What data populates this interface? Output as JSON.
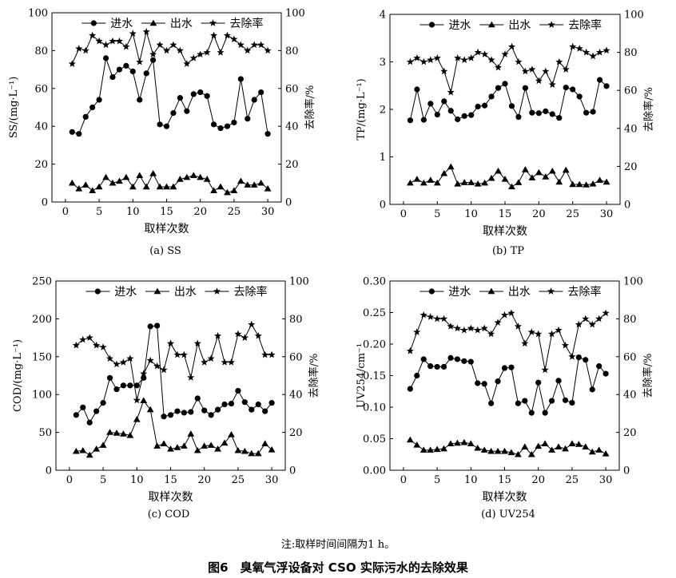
{
  "figure": {
    "note": "注:取样时间间隔为1 h。",
    "title": "图6　臭氧气浮设备对 CSO 实际污水的去除效果"
  },
  "chart_data": [
    {
      "type": "line",
      "caption": "(a) SS",
      "xlabel": "取样次数",
      "ylabel": "SS/(mg·L⁻¹)",
      "y2label": "去除率/%",
      "xlim": [
        -2,
        32
      ],
      "ylim": [
        0,
        100
      ],
      "y2lim": [
        0,
        100
      ],
      "xticks": [
        0,
        5,
        10,
        15,
        20,
        25,
        30
      ],
      "yticks": [
        0,
        20,
        40,
        60,
        80,
        100
      ],
      "y2ticks": [
        0,
        20,
        40,
        60,
        80,
        100
      ],
      "legend_position": "top",
      "x": [
        1,
        2,
        3,
        4,
        5,
        6,
        7,
        8,
        9,
        10,
        11,
        12,
        13,
        14,
        15,
        16,
        17,
        18,
        19,
        20,
        21,
        22,
        23,
        24,
        25,
        26,
        27,
        28,
        29,
        30
      ],
      "series": [
        {
          "name": "进水",
          "marker": "circle",
          "axis": "left",
          "values": [
            37,
            36,
            45,
            50,
            54,
            76,
            66,
            70,
            72,
            69,
            54,
            68,
            75,
            41,
            40,
            47,
            55,
            48,
            57,
            58,
            56,
            41,
            39,
            40,
            42,
            65,
            44,
            54,
            58,
            36
          ]
        },
        {
          "name": "出水",
          "marker": "triangle",
          "axis": "left",
          "values": [
            10,
            7,
            9,
            6,
            8,
            13,
            10,
            11,
            13,
            8,
            14,
            8,
            15,
            8,
            8,
            8,
            12,
            13,
            14,
            13,
            12,
            6,
            8,
            5,
            6,
            11,
            9,
            9,
            10,
            7
          ]
        },
        {
          "name": "去除率",
          "marker": "star",
          "axis": "right",
          "values": [
            73,
            81,
            80,
            88,
            85,
            83,
            85,
            85,
            82,
            89,
            74,
            90,
            78,
            83,
            80,
            83,
            80,
            73,
            76,
            78,
            79,
            88,
            79,
            88,
            86,
            83,
            80,
            83,
            83,
            80
          ]
        }
      ]
    },
    {
      "type": "line",
      "caption": "(b) TP",
      "xlabel": "取样次数",
      "ylabel": "TP/(mg·L⁻¹)",
      "y2label": "去除率/%",
      "xlim": [
        -2,
        32
      ],
      "ylim": [
        0,
        4
      ],
      "y2lim": [
        0,
        100
      ],
      "xticks": [
        0,
        5,
        10,
        15,
        20,
        25,
        30
      ],
      "yticks": [
        0,
        1,
        2,
        3,
        4
      ],
      "y2ticks": [
        0,
        20,
        40,
        60,
        80,
        100
      ],
      "legend_position": "top",
      "x": [
        1,
        2,
        3,
        4,
        5,
        6,
        7,
        8,
        9,
        10,
        11,
        12,
        13,
        14,
        15,
        16,
        17,
        18,
        19,
        20,
        21,
        22,
        23,
        24,
        25,
        26,
        27,
        28,
        29,
        30
      ],
      "series": [
        {
          "name": "进水",
          "marker": "circle",
          "axis": "left",
          "values": [
            1.77,
            2.42,
            1.78,
            2.12,
            1.89,
            2.17,
            1.97,
            1.79,
            1.86,
            1.88,
            2.06,
            2.08,
            2.27,
            2.45,
            2.54,
            2.07,
            1.84,
            2.45,
            1.93,
            1.92,
            1.96,
            1.9,
            1.82,
            2.46,
            2.42,
            2.27,
            1.93,
            1.95,
            2.62,
            2.49
          ]
        },
        {
          "name": "出水",
          "marker": "triangle",
          "axis": "left",
          "values": [
            0.45,
            0.53,
            0.45,
            0.51,
            0.45,
            0.65,
            0.79,
            0.43,
            0.46,
            0.46,
            0.43,
            0.45,
            0.55,
            0.7,
            0.53,
            0.37,
            0.46,
            0.73,
            0.56,
            0.67,
            0.58,
            0.7,
            0.47,
            0.72,
            0.42,
            0.42,
            0.41,
            0.43,
            0.51,
            0.47
          ]
        },
        {
          "name": "去除率",
          "marker": "star",
          "axis": "right",
          "values": [
            75,
            77,
            75,
            76,
            77,
            70,
            59,
            77,
            76,
            77,
            80,
            79,
            76,
            72,
            79,
            83,
            75,
            70,
            71,
            65,
            70,
            63,
            75,
            71,
            83,
            82,
            80,
            78,
            80,
            81
          ]
        }
      ]
    },
    {
      "type": "line",
      "caption": "(c) COD",
      "xlabel": "取样次数",
      "ylabel": "COD/(mg·L⁻¹)",
      "y2label": "去除率/%",
      "xlim": [
        -2,
        32
      ],
      "ylim": [
        0,
        250
      ],
      "y2lim": [
        0,
        100
      ],
      "xticks": [
        0,
        5,
        10,
        15,
        20,
        25,
        30
      ],
      "yticks": [
        0,
        50,
        100,
        150,
        200,
        250
      ],
      "y2ticks": [
        0,
        20,
        40,
        60,
        80,
        100
      ],
      "legend_position": "top",
      "x": [
        1,
        2,
        3,
        4,
        5,
        6,
        7,
        8,
        9,
        10,
        11,
        12,
        13,
        14,
        15,
        16,
        17,
        18,
        19,
        20,
        21,
        22,
        23,
        24,
        25,
        26,
        27,
        28,
        29,
        30
      ],
      "series": [
        {
          "name": "进水",
          "marker": "circle",
          "axis": "left",
          "values": [
            73,
            83,
            63,
            78,
            89,
            122,
            107,
            112,
            112,
            112,
            122,
            190,
            191,
            71,
            73,
            78,
            76,
            77,
            95,
            79,
            73,
            80,
            87,
            88,
            105,
            90,
            80,
            87,
            78,
            89
          ]
        },
        {
          "name": "出水",
          "marker": "triangle",
          "axis": "left",
          "values": [
            25,
            26,
            20,
            28,
            33,
            50,
            49,
            48,
            46,
            67,
            92,
            80,
            32,
            35,
            28,
            30,
            32,
            48,
            26,
            32,
            33,
            28,
            36,
            47,
            26,
            25,
            22,
            22,
            35,
            27
          ]
        },
        {
          "name": "去除率",
          "marker": "star",
          "axis": "right",
          "values": [
            66,
            69,
            70,
            66,
            65,
            59,
            56,
            57,
            59,
            37,
            51,
            58,
            55,
            53,
            67,
            61,
            61,
            49,
            67,
            57,
            59,
            71,
            57,
            57,
            72,
            70,
            77,
            71,
            61,
            61
          ]
        }
      ]
    },
    {
      "type": "line",
      "caption": "(d) UV254",
      "xlabel": "取样次数",
      "ylabel": "UV254/cm⁻¹",
      "y2label": "去除率/%",
      "xlim": [
        -2,
        32
      ],
      "ylim": [
        0,
        0.3
      ],
      "y2lim": [
        0,
        100
      ],
      "xticks": [
        0,
        5,
        10,
        15,
        20,
        25,
        30
      ],
      "yticks": [
        0.0,
        0.05,
        0.1,
        0.15,
        0.2,
        0.25,
        0.3
      ],
      "y2ticks": [
        0,
        20,
        40,
        60,
        80,
        100
      ],
      "legend_position": "top",
      "x": [
        1,
        2,
        3,
        4,
        5,
        6,
        7,
        8,
        9,
        10,
        11,
        12,
        13,
        14,
        15,
        16,
        17,
        18,
        19,
        20,
        21,
        22,
        23,
        24,
        25,
        26,
        27,
        28,
        29,
        30
      ],
      "series": [
        {
          "name": "进水",
          "marker": "circle",
          "axis": "left",
          "values": [
            0.129,
            0.15,
            0.176,
            0.165,
            0.164,
            0.164,
            0.178,
            0.176,
            0.173,
            0.172,
            0.138,
            0.137,
            0.106,
            0.141,
            0.162,
            0.163,
            0.106,
            0.11,
            0.091,
            0.139,
            0.091,
            0.11,
            0.142,
            0.111,
            0.107,
            0.179,
            0.175,
            0.128,
            0.165,
            0.153
          ]
        },
        {
          "name": "出水",
          "marker": "triangle",
          "axis": "left",
          "values": [
            0.048,
            0.04,
            0.032,
            0.032,
            0.033,
            0.034,
            0.042,
            0.043,
            0.044,
            0.042,
            0.035,
            0.032,
            0.03,
            0.03,
            0.03,
            0.028,
            0.025,
            0.037,
            0.025,
            0.038,
            0.042,
            0.032,
            0.037,
            0.034,
            0.042,
            0.041,
            0.037,
            0.029,
            0.032,
            0.026
          ]
        },
        {
          "name": "去除率",
          "marker": "star",
          "axis": "right",
          "values": [
            63,
            73,
            82,
            81,
            80,
            80,
            76,
            75,
            74,
            75,
            74,
            75,
            72,
            78,
            82,
            83,
            76,
            67,
            73,
            72,
            53,
            72,
            74,
            66,
            60,
            77,
            80,
            77,
            80,
            83
          ]
        }
      ]
    }
  ]
}
